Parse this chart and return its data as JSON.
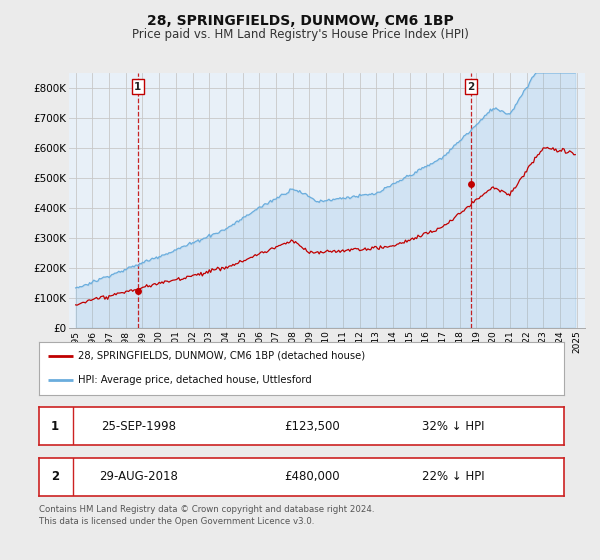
{
  "title": "28, SPRINGFIELDS, DUNMOW, CM6 1BP",
  "subtitle": "Price paid vs. HM Land Registry's House Price Index (HPI)",
  "ylim": [
    0,
    850000
  ],
  "yticks": [
    0,
    100000,
    200000,
    300000,
    400000,
    500000,
    600000,
    700000,
    800000
  ],
  "ytick_labels": [
    "£0",
    "£100K",
    "£200K",
    "£300K",
    "£400K",
    "£500K",
    "£600K",
    "£700K",
    "£800K"
  ],
  "hpi_color": "#6aaddd",
  "hpi_fill_color": "#d6eaf8",
  "price_color": "#c00000",
  "yr1": 1998.72,
  "p1": 123500,
  "yr2": 2018.66,
  "p2": 480000,
  "legend_label1": "28, SPRINGFIELDS, DUNMOW, CM6 1BP (detached house)",
  "legend_label2": "HPI: Average price, detached house, Uttlesford",
  "table_row1": [
    "1",
    "25-SEP-1998",
    "£123,500",
    "32% ↓ HPI"
  ],
  "table_row2": [
    "2",
    "29-AUG-2018",
    "£480,000",
    "22% ↓ HPI"
  ],
  "footer": "Contains HM Land Registry data © Crown copyright and database right 2024.\nThis data is licensed under the Open Government Licence v3.0.",
  "bg_color": "#ebebeb",
  "plot_bg_color": "#e8f0f8",
  "grid_color": "#c8c8c8",
  "title_fontsize": 10,
  "subtitle_fontsize": 8.5
}
